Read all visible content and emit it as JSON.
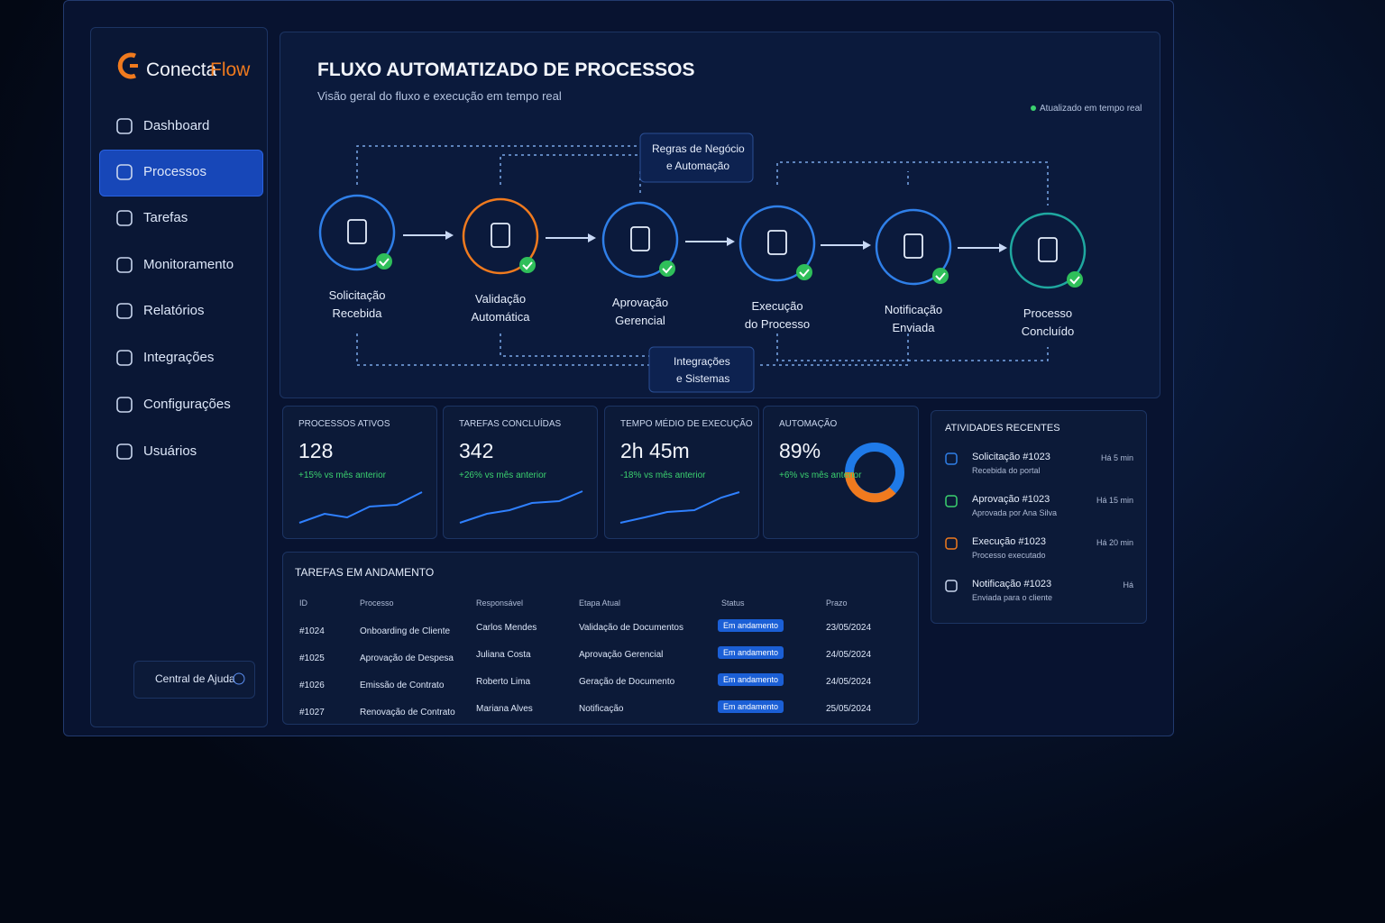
{
  "brand": {
    "name_a": "Conecta",
    "name_b": "Flow"
  },
  "nav": [
    "Dashboard",
    "Processos",
    "Tarefas",
    "Monitoramento",
    "Relatórios",
    "Integrações",
    "Configurações",
    "Usuários"
  ],
  "help": "Central de Ajuda",
  "header": {
    "title": "FLUXO AUTOMATIZADO DE PROCESSOS",
    "subtitle": "Visão geral do fluxo e execução em tempo real",
    "status": "Atualizado em tempo real"
  },
  "flow": {
    "steps": [
      [
        "Solicitação",
        "Recebida"
      ],
      [
        "Validação",
        "Automática"
      ],
      [
        "Aprovação",
        "Gerencial"
      ],
      [
        "Execução",
        "do Processo"
      ],
      [
        "Notificação",
        "Enviada"
      ],
      [
        "Processo",
        "Concluído"
      ]
    ],
    "top_box": [
      "Regras de Negócio",
      "e Automação"
    ],
    "bottom_box": [
      "Integrações",
      "e Sistemas"
    ]
  },
  "kpis": [
    {
      "label": "PROCESSOS ATIVOS",
      "value": "128",
      "change": "+15% vs mês anterior"
    },
    {
      "label": "TAREFAS CONCLUÍDAS",
      "value": "342",
      "change": "+26% vs mês anterior"
    },
    {
      "label": "TEMPO MÉDIO DE EXECUÇÃO",
      "value": "2h 45m",
      "change": "-18% vs mês anterior"
    },
    {
      "label": "AUTOMAÇÃO",
      "value": "89%",
      "change": "+6% vs mês anterior"
    }
  ],
  "table": {
    "title": "TAREFAS EM ANDAMENTO",
    "columns": [
      "ID",
      "Processo",
      "Responsável",
      "Etapa Atual",
      "Status",
      "Prazo"
    ],
    "rows": [
      [
        "#1024",
        "Onboarding de Cliente",
        "Carlos Mendes",
        "Validação de Documentos",
        "Em andamento",
        "23/05/2024"
      ],
      [
        "#1025",
        "Aprovação de Despesa",
        "Juliana Costa",
        "Aprovação Gerencial",
        "Em andamento",
        "24/05/2024"
      ],
      [
        "#1026",
        "Emissão de Contrato",
        "Roberto Lima",
        "Geração de Documento",
        "Em andamento",
        "24/05/2024"
      ],
      [
        "#1027",
        "Renovação de Contrato",
        "Mariana Alves",
        "Notificação",
        "Em andamento",
        "25/05/2024"
      ]
    ]
  },
  "activities": {
    "title": "ATIVIDADES RECENTES",
    "items": [
      {
        "title": "Solicitação #1023",
        "detail": "Recebida do portal",
        "time": "Há 5 min"
      },
      {
        "title": "Aprovação #1023",
        "detail": "Aprovada por Ana Silva",
        "time": "Há 15 min"
      },
      {
        "title": "Execução #1023",
        "detail": "Processo executado",
        "time": "Há 20 min"
      },
      {
        "title": "Notificação #1023",
        "detail": "Enviada para o cliente",
        "time": "Há"
      }
    ]
  }
}
